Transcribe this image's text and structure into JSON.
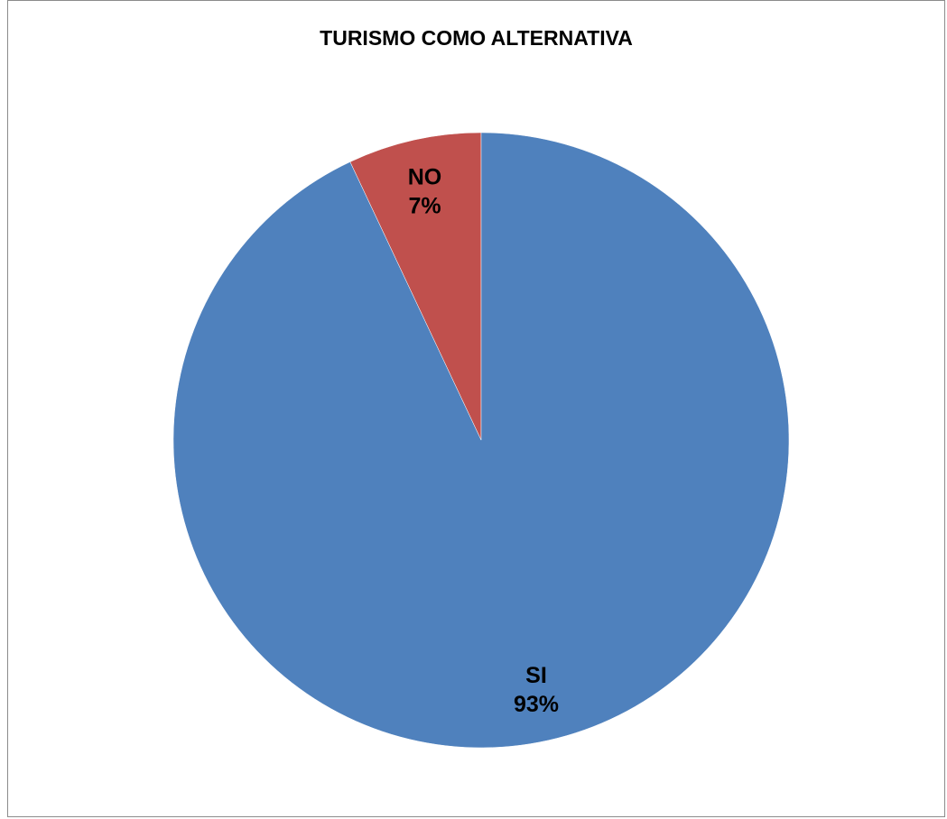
{
  "chart_data": {
    "type": "pie",
    "title": "TURISMO COMO ALTERNATIVA",
    "slices": [
      {
        "label": "NO",
        "value": 7,
        "display": "7%",
        "color": "#c0504d"
      },
      {
        "label": "SI",
        "value": 93,
        "display": "93%",
        "color": "#4f81bd"
      }
    ],
    "start_angle": "12 o'clock",
    "direction": "counterclockwise",
    "legend": "none",
    "data_labels": "inside slice, category name above percentage"
  }
}
